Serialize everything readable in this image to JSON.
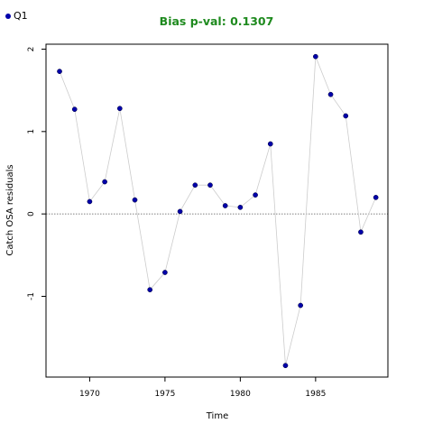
{
  "chart_data": {
    "type": "scatter",
    "title": "Bias p-val: 0.1307",
    "title_color": "#228B22",
    "xlabel": "Time",
    "ylabel": "Catch OSA residuals",
    "xlim": [
      1967.1,
      1989.8
    ],
    "ylim": [
      -1.98,
      2.06
    ],
    "xticks": [
      1970,
      1975,
      1980,
      1985
    ],
    "yticks": [
      -1,
      0,
      1,
      2
    ],
    "reference_line": 0,
    "legend": "top-left",
    "series": [
      {
        "name": "Q1",
        "color": "#0000AA",
        "line_color": "#CCCCCC",
        "x": [
          1968,
          1969,
          1970,
          1971,
          1972,
          1973,
          1974,
          1975,
          1976,
          1977,
          1978,
          1979,
          1980,
          1981,
          1982,
          1983,
          1984,
          1985,
          1986,
          1987,
          1988,
          1989
        ],
        "y": [
          1.73,
          1.27,
          0.15,
          0.39,
          1.28,
          0.17,
          -0.92,
          -0.71,
          0.03,
          0.35,
          0.35,
          0.1,
          0.08,
          0.23,
          0.85,
          -1.84,
          -1.11,
          1.91,
          1.45,
          1.19,
          -0.22,
          0.2
        ]
      }
    ]
  }
}
